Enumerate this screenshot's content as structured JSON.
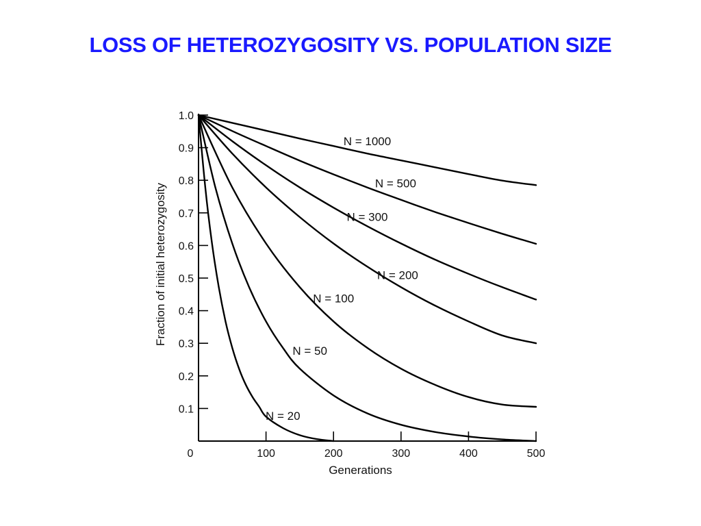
{
  "slide": {
    "title": "LOSS OF HETEROZYGOSITY VS. POPULATION SIZE",
    "title_color": "#1a1aff"
  },
  "chart_data": {
    "type": "line",
    "title": "",
    "xlabel": "Generations",
    "ylabel": "Fraction of initial heterozygosity",
    "xlim": [
      0,
      500
    ],
    "ylim": [
      0,
      1.0
    ],
    "x_ticks": [
      {
        "value": 0,
        "label": "0"
      },
      {
        "value": 100,
        "label": "100"
      },
      {
        "value": 200,
        "label": "200"
      },
      {
        "value": 300,
        "label": "300"
      },
      {
        "value": 400,
        "label": "400"
      },
      {
        "value": 500,
        "label": "500"
      }
    ],
    "y_ticks": [
      {
        "value": 0.1,
        "label": "0.1"
      },
      {
        "value": 0.2,
        "label": "0.2"
      },
      {
        "value": 0.3,
        "label": "0.3"
      },
      {
        "value": 0.4,
        "label": "0.4"
      },
      {
        "value": 0.5,
        "label": "0.5"
      },
      {
        "value": 0.6,
        "label": "0.6"
      },
      {
        "value": 0.7,
        "label": "0.7"
      },
      {
        "value": 0.8,
        "label": "0.8"
      },
      {
        "value": 0.9,
        "label": "0.9"
      },
      {
        "value": 1.0,
        "label": "1.0"
      }
    ],
    "grid": false,
    "line_color": "#000000",
    "series": [
      {
        "name": "N = 1000",
        "N": 1000,
        "label_at": [
          250,
          0.908
        ],
        "x": [
          0,
          50,
          100,
          150,
          200,
          250,
          300,
          350,
          400,
          450,
          500
        ],
        "y": [
          1.0,
          0.976,
          0.952,
          0.928,
          0.905,
          0.882,
          0.861,
          0.84,
          0.819,
          0.799,
          0.785
        ]
      },
      {
        "name": "N = 500",
        "N": 500,
        "label_at": [
          292,
          0.778
        ],
        "x": [
          0,
          50,
          100,
          150,
          200,
          250,
          300,
          350,
          400,
          450,
          500
        ],
        "y": [
          1.0,
          0.951,
          0.905,
          0.86,
          0.818,
          0.778,
          0.74,
          0.703,
          0.669,
          0.636,
          0.605
        ]
      },
      {
        "name": "N = 300",
        "N": 300,
        "label_at": [
          250,
          0.675
        ],
        "x": [
          0,
          50,
          100,
          150,
          200,
          250,
          300,
          350,
          400,
          450,
          500
        ],
        "y": [
          1.0,
          0.92,
          0.846,
          0.778,
          0.716,
          0.659,
          0.606,
          0.557,
          0.513,
          0.472,
          0.434
        ]
      },
      {
        "name": "N = 200",
        "N": 200,
        "label_at": [
          295,
          0.497
        ],
        "x": [
          0,
          50,
          100,
          150,
          200,
          250,
          300,
          350,
          400,
          450,
          500
        ],
        "y": [
          1.0,
          0.882,
          0.778,
          0.687,
          0.606,
          0.535,
          0.472,
          0.416,
          0.367,
          0.324,
          0.3
        ]
      },
      {
        "name": "N = 100",
        "N": 100,
        "label_at": [
          200,
          0.425
        ],
        "x": [
          0,
          50,
          100,
          150,
          200,
          250,
          300,
          350,
          400,
          450,
          500
        ],
        "y": [
          1.0,
          0.778,
          0.606,
          0.472,
          0.367,
          0.286,
          0.222,
          0.173,
          0.135,
          0.112,
          0.105
        ]
      },
      {
        "name": "N = 50",
        "N": 50,
        "label_at": [
          165,
          0.265
        ],
        "x": [
          0,
          25,
          50,
          75,
          100,
          125,
          150,
          200,
          250,
          300,
          350,
          400,
          450,
          500
        ],
        "y": [
          1.0,
          0.778,
          0.606,
          0.472,
          0.367,
          0.286,
          0.222,
          0.14,
          0.085,
          0.05,
          0.028,
          0.014,
          0.005,
          0.0
        ]
      },
      {
        "name": "N = 20",
        "N": 20,
        "label_at": [
          125,
          0.065
        ],
        "x": [
          0,
          10,
          20,
          30,
          40,
          50,
          60,
          70,
          80,
          90,
          100,
          125,
          150,
          175,
          200
        ],
        "y": [
          1.0,
          0.778,
          0.606,
          0.472,
          0.367,
          0.286,
          0.222,
          0.173,
          0.135,
          0.105,
          0.075,
          0.04,
          0.018,
          0.006,
          0.0
        ]
      }
    ]
  }
}
